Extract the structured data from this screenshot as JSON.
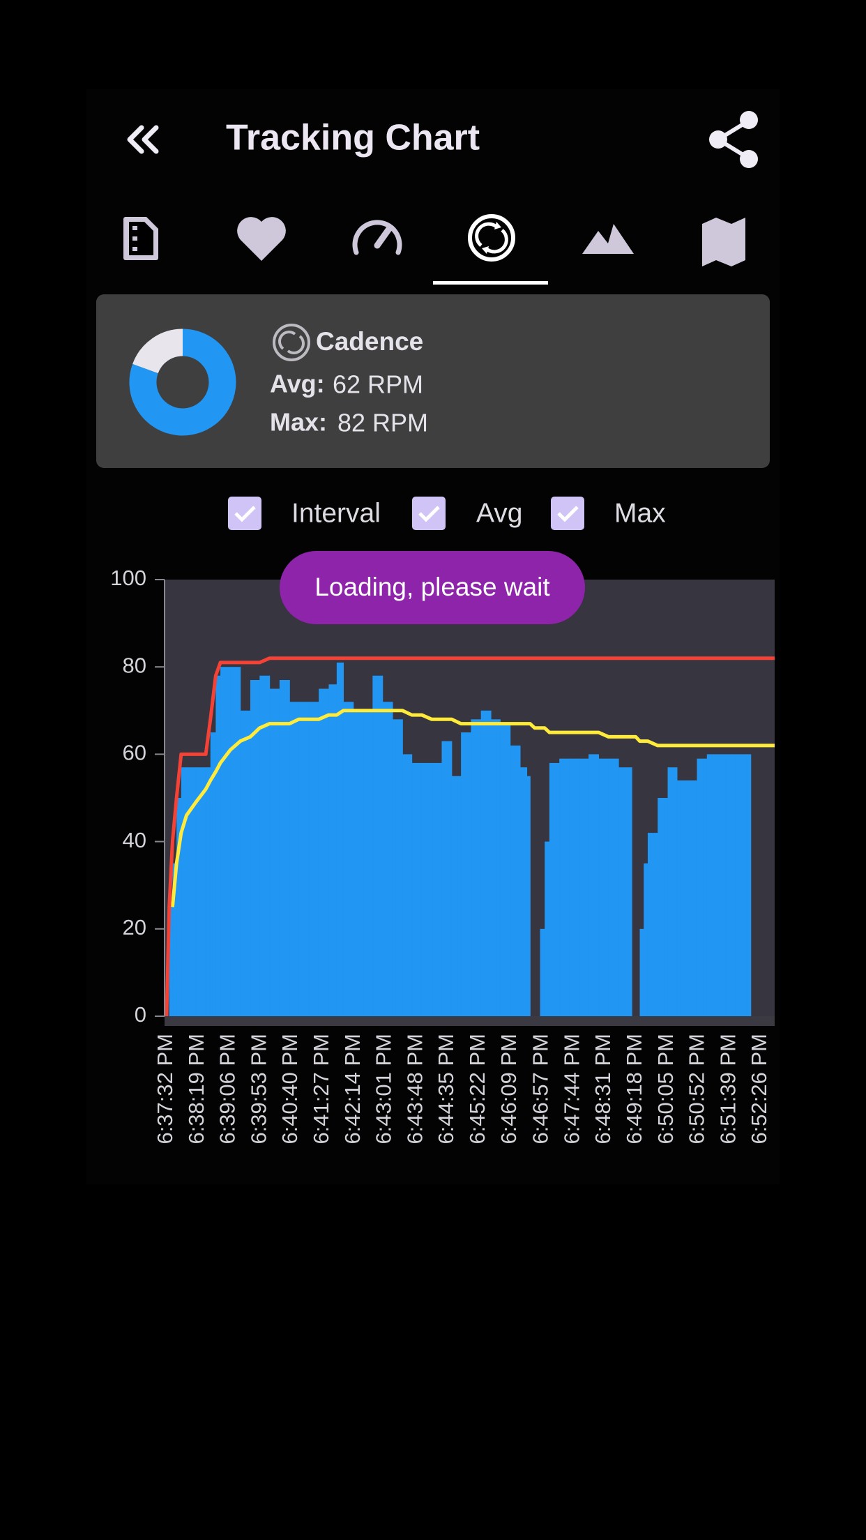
{
  "header": {
    "title": "Tracking Chart"
  },
  "summary": {
    "title": "Cadence",
    "avg": {
      "label": "Avg:",
      "value": "62 RPM"
    },
    "max": {
      "label": "Max:",
      "value": "82 RPM"
    }
  },
  "toast": "Loading, please wait",
  "chart_data": {
    "type": "line",
    "x": [
      "6:37:32 PM",
      "6:37:36 PM",
      "6:37:41 PM",
      "6:37:47 PM",
      "6:37:54 PM",
      "6:38:02 PM",
      "6:38:16 PM",
      "6:38:31 PM",
      "6:38:38 PM",
      "6:38:46 PM",
      "6:38:53 PM",
      "6:39:08 PM",
      "6:39:23 PM",
      "6:39:38 PM",
      "6:39:52 PM",
      "6:40:07 PM",
      "6:40:22 PM",
      "6:40:37 PM",
      "6:40:51 PM",
      "6:41:06 PM",
      "6:41:21 PM",
      "6:41:36 PM",
      "6:41:48 PM",
      "6:41:58 PM",
      "6:42:13 PM",
      "6:42:28 PM",
      "6:42:42 PM",
      "6:42:57 PM",
      "6:43:12 PM",
      "6:43:27 PM",
      "6:43:41 PM",
      "6:43:56 PM",
      "6:44:11 PM",
      "6:44:26 PM",
      "6:44:41 PM",
      "6:44:55 PM",
      "6:45:10 PM",
      "6:45:25 PM",
      "6:45:40 PM",
      "6:45:54 PM",
      "6:46:09 PM",
      "6:46:24 PM",
      "6:46:34 PM",
      "6:46:39 PM",
      "6:46:46 PM",
      "6:46:54 PM",
      "6:47:01 PM",
      "6:47:08 PM",
      "6:47:23 PM",
      "6:47:38 PM",
      "6:47:53 PM",
      "6:48:07 PM",
      "6:48:22 PM",
      "6:48:37 PM",
      "6:48:52 PM",
      "6:49:07 PM",
      "6:49:12 PM",
      "6:49:18 PM",
      "6:49:24 PM",
      "6:49:30 PM",
      "6:49:36 PM",
      "6:49:51 PM",
      "6:50:06 PM",
      "6:50:20 PM",
      "6:50:35 PM",
      "6:50:50 PM",
      "6:51:05 PM",
      "6:51:20 PM",
      "6:51:34 PM",
      "6:51:49 PM",
      "6:52:04 PM",
      "6:52:11 PM",
      "6:52:26 PM",
      "6:52:47 PM"
    ],
    "xlim": [
      "6:37:29 PM",
      "6:52:47 PM"
    ],
    "xticks": [
      "6:37:32 PM",
      "6:38:19 PM",
      "6:39:06 PM",
      "6:39:53 PM",
      "6:40:40 PM",
      "6:41:27 PM",
      "6:42:14 PM",
      "6:43:01 PM",
      "6:43:48 PM",
      "6:44:35 PM",
      "6:45:22 PM",
      "6:46:09 PM",
      "6:46:57 PM",
      "6:47:44 PM",
      "6:48:31 PM",
      "6:49:18 PM",
      "6:50:05 PM",
      "6:50:52 PM",
      "6:51:39 PM",
      "6:52:26 PM"
    ],
    "ylim": [
      0,
      100
    ],
    "yticks": [
      0,
      20,
      40,
      60,
      80,
      100
    ],
    "grid": false,
    "series": [
      {
        "name": "Interval",
        "type": "bar",
        "color": "#2196f3",
        "values": [
          0,
          25,
          35,
          50,
          57,
          57,
          57,
          57,
          65,
          78,
          80,
          80,
          70,
          77,
          78,
          75,
          77,
          72,
          72,
          72,
          75,
          76,
          81,
          72,
          70,
          70,
          78,
          72,
          68,
          60,
          58,
          58,
          58,
          63,
          55,
          65,
          68,
          70,
          68,
          67,
          62,
          57,
          55,
          0,
          0,
          20,
          40,
          58,
          59,
          59,
          59,
          60,
          59,
          59,
          57,
          57,
          0,
          0,
          20,
          35,
          42,
          50,
          57,
          54,
          54,
          59,
          60,
          60,
          60,
          60,
          60,
          null,
          null,
          null
        ]
      },
      {
        "name": "Avg",
        "type": "line",
        "color": "#ffeb3b",
        "values": [
          null,
          null,
          25,
          35,
          42,
          46,
          49,
          52,
          54,
          56,
          58,
          61,
          63,
          64,
          66,
          67,
          67,
          67,
          68,
          68,
          68,
          69,
          69,
          70,
          70,
          70,
          70,
          70,
          70,
          70,
          69,
          69,
          68,
          68,
          68,
          67,
          67,
          67,
          67,
          67,
          67,
          67,
          67,
          67,
          66,
          66,
          66,
          65,
          65,
          65,
          65,
          65,
          65,
          64,
          64,
          64,
          64,
          64,
          63,
          63,
          63,
          62,
          62,
          62,
          62,
          62,
          62,
          62,
          62,
          62,
          62,
          62,
          62,
          62
        ]
      },
      {
        "name": "Max",
        "type": "line",
        "color": "#f44336",
        "values": [
          0,
          25,
          40,
          50,
          60,
          60,
          60,
          60,
          68,
          78,
          81,
          81,
          81,
          81,
          81,
          82,
          82,
          82,
          82,
          82,
          82,
          82,
          82,
          82,
          82,
          82,
          82,
          82,
          82,
          82,
          82,
          82,
          82,
          82,
          82,
          82,
          82,
          82,
          82,
          82,
          82,
          82,
          82,
          82,
          82,
          82,
          82,
          82,
          82,
          82,
          82,
          82,
          82,
          82,
          82,
          82,
          82,
          82,
          82,
          82,
          82,
          82,
          82,
          82,
          82,
          82,
          82,
          82,
          82,
          82,
          82,
          82,
          82,
          82
        ]
      }
    ]
  }
}
